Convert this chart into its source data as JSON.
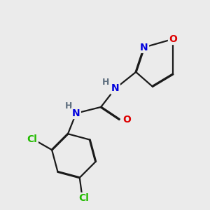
{
  "background_color": "#ebebeb",
  "bond_color": "#1a1a1a",
  "atom_colors": {
    "N": "#0000dd",
    "O": "#dd0000",
    "Cl": "#22bb00",
    "H": "#607080",
    "C": "#1a1a1a"
  },
  "bond_width": 1.6,
  "dbo": 0.018,
  "figsize": [
    3.0,
    3.0
  ],
  "dpi": 100
}
